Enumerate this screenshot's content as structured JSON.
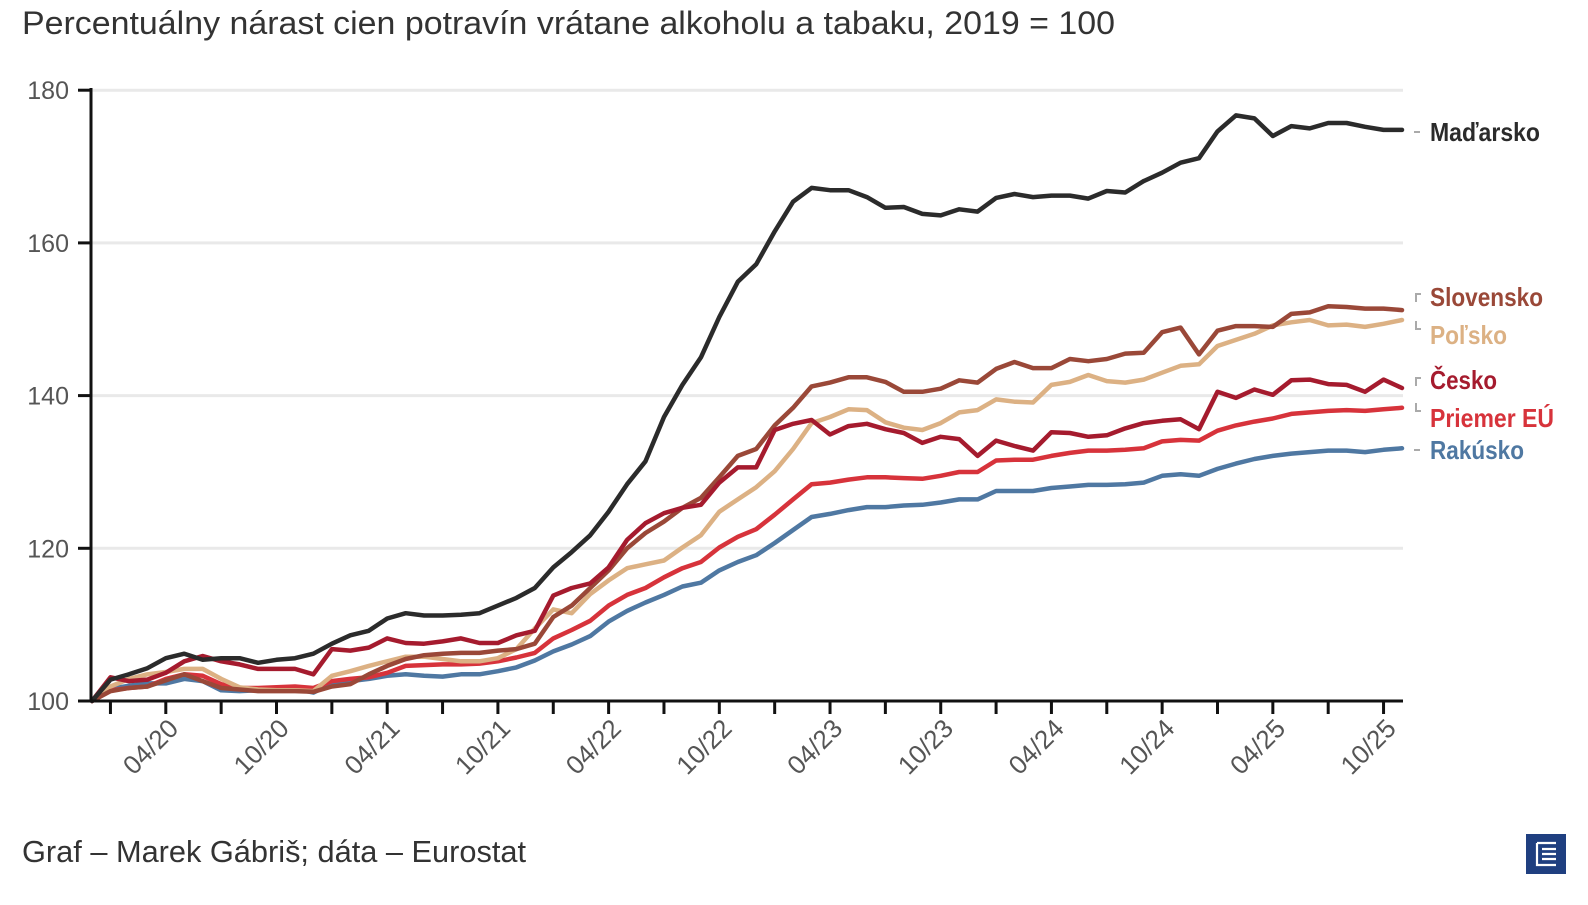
{
  "header": {
    "title": "Percentuálny nárast cien potravín vrátane alkoholu a tabaku, 2019 = 100"
  },
  "footer": {
    "credit": "Graf – Marek Gábriš; dáta – Eurostat"
  },
  "logo": {
    "icon": "e-logo-icon",
    "color": "#1f3f80"
  },
  "chart_data": {
    "type": "line",
    "title": "Percentuálny nárast cien potravín vrátane alkoholu a tabaku, 2019 = 100",
    "xlabel": "",
    "ylabel": "",
    "ylim": [
      100,
      180
    ],
    "y_ticks": [
      "100",
      "120",
      "140",
      "160",
      "180"
    ],
    "y_tick_values": [
      100,
      120,
      140,
      160,
      180
    ],
    "grid": true,
    "legend": "right-end labels",
    "x_unit": "month index (0 = 12/19)",
    "x_count": 72,
    "x_minor_tick_every": 3,
    "x_minor_tick_start": 1,
    "x_ticks": [
      {
        "label": "04/20",
        "month_index": 4
      },
      {
        "label": "10/20",
        "month_index": 10
      },
      {
        "label": "04/21",
        "month_index": 16
      },
      {
        "label": "10/21",
        "month_index": 22
      },
      {
        "label": "04/22",
        "month_index": 28
      },
      {
        "label": "10/22",
        "month_index": 34
      },
      {
        "label": "04/23",
        "month_index": 40
      },
      {
        "label": "10/23",
        "month_index": 46
      },
      {
        "label": "04/24",
        "month_index": 52
      },
      {
        "label": "10/24",
        "month_index": 58
      },
      {
        "label": "04/25",
        "month_index": 64
      },
      {
        "label": "10/25",
        "month_index": 70
      }
    ],
    "series": [
      {
        "name": "Maďarsko",
        "color": "#2b2b2b",
        "values": [
          100,
          102.8,
          103.5,
          104.3,
          105.6,
          106.2,
          105.4,
          105.6,
          105.6,
          105.0,
          105.4,
          105.6,
          106.2,
          107.5,
          108.6,
          109.2,
          110.8,
          111.5,
          111.2,
          111.2,
          111.3,
          111.5,
          112.5,
          113.5,
          114.8,
          117.5,
          119.5,
          121.7,
          124.8,
          128.4,
          131.4,
          137.2,
          141.4,
          145.0,
          150.3,
          154.9,
          157.2,
          161.5,
          165.4,
          167.2,
          166.9,
          166.9,
          166.0,
          164.6,
          164.7,
          163.8,
          163.6,
          164.4,
          164.1,
          165.9,
          166.4,
          166.0,
          166.2,
          166.2,
          165.8,
          166.8,
          166.6,
          168.1,
          169.2,
          170.5,
          171.1,
          174.6,
          176.7,
          176.3,
          174.0,
          175.3,
          175.0,
          175.7,
          175.7,
          175.2,
          174.8,
          174.8
        ]
      },
      {
        "name": "Slovensko",
        "color": "#9a4838",
        "values": [
          100,
          101.3,
          101.7,
          101.9,
          102.7,
          103.5,
          102.6,
          101.7,
          101.5,
          101.3,
          101.3,
          101.3,
          101.2,
          101.9,
          102.2,
          103.5,
          104.6,
          105.5,
          106.0,
          106.2,
          106.3,
          106.3,
          106.6,
          106.8,
          107.5,
          111.0,
          112.5,
          114.8,
          117.1,
          120.0,
          122.0,
          123.5,
          125.3,
          126.6,
          129.3,
          132.1,
          133.0,
          136.1,
          138.4,
          141.2,
          141.7,
          142.4,
          142.4,
          141.8,
          140.5,
          140.5,
          140.9,
          142.0,
          141.7,
          143.5,
          144.4,
          143.6,
          143.6,
          144.8,
          144.5,
          144.8,
          145.5,
          145.6,
          148.3,
          148.9,
          145.4,
          148.5,
          149.1,
          149.1,
          149.0,
          150.7,
          150.9,
          151.7,
          151.6,
          151.4,
          151.4,
          151.2
        ]
      },
      {
        "name": "Poľsko",
        "color": "#dcb184",
        "values": [
          100,
          101.9,
          102.9,
          103.5,
          103.8,
          104.2,
          104.2,
          102.9,
          101.8,
          101.5,
          101.4,
          101.4,
          101.3,
          103.3,
          103.9,
          104.6,
          105.2,
          105.8,
          105.8,
          105.5,
          105.2,
          105.2,
          105.6,
          106.8,
          109.5,
          112.0,
          111.5,
          114.0,
          115.8,
          117.4,
          117.9,
          118.4,
          120.1,
          121.7,
          124.8,
          126.4,
          128.0,
          130.1,
          133.0,
          136.4,
          137.2,
          138.2,
          138.1,
          136.5,
          135.8,
          135.5,
          136.4,
          137.8,
          138.1,
          139.5,
          139.2,
          139.1,
          141.4,
          141.8,
          142.7,
          141.9,
          141.7,
          142.1,
          143.0,
          143.9,
          144.1,
          146.5,
          147.3,
          148.1,
          149.2,
          149.6,
          149.9,
          149.2,
          149.3,
          149.0,
          149.4,
          149.9
        ]
      },
      {
        "name": "Česko",
        "color": "#a51b2e",
        "values": [
          100,
          103.1,
          102.6,
          102.8,
          103.7,
          105.2,
          105.9,
          105.2,
          104.8,
          104.2,
          104.2,
          104.2,
          103.5,
          106.8,
          106.6,
          107.0,
          108.2,
          107.6,
          107.5,
          107.8,
          108.2,
          107.6,
          107.6,
          108.6,
          109.2,
          113.8,
          114.8,
          115.4,
          117.5,
          121.1,
          123.3,
          124.6,
          125.3,
          125.7,
          128.6,
          130.6,
          130.6,
          135.5,
          136.3,
          136.8,
          134.9,
          136.0,
          136.3,
          135.6,
          135.1,
          133.8,
          134.6,
          134.3,
          132.1,
          134.1,
          133.4,
          132.8,
          135.2,
          135.1,
          134.6,
          134.8,
          135.7,
          136.4,
          136.7,
          136.9,
          135.6,
          140.5,
          139.7,
          140.8,
          140.1,
          142.0,
          142.1,
          141.5,
          141.4,
          140.5,
          142.1,
          141.0
        ]
      },
      {
        "name": "Priemer EÚ",
        "color": "#d7333b",
        "values": [
          100,
          101.4,
          101.7,
          101.9,
          102.9,
          103.5,
          103.3,
          102.2,
          101.7,
          101.7,
          101.8,
          101.9,
          101.7,
          102.6,
          102.9,
          103.1,
          103.7,
          104.6,
          104.7,
          104.8,
          104.8,
          104.9,
          105.2,
          105.7,
          106.3,
          108.2,
          109.3,
          110.5,
          112.5,
          113.9,
          114.8,
          116.2,
          117.4,
          118.2,
          120.1,
          121.5,
          122.5,
          124.4,
          126.4,
          128.4,
          128.6,
          129.0,
          129.3,
          129.3,
          129.2,
          129.1,
          129.5,
          130.0,
          130.0,
          131.5,
          131.6,
          131.6,
          132.1,
          132.5,
          132.8,
          132.8,
          132.9,
          133.1,
          134.0,
          134.2,
          134.1,
          135.4,
          136.1,
          136.6,
          137.0,
          137.6,
          137.8,
          138.0,
          138.1,
          138.0,
          138.2,
          138.4
        ]
      },
      {
        "name": "Rakúsko",
        "color": "#4f78a2",
        "values": [
          100,
          101.6,
          102.0,
          102.3,
          102.3,
          102.9,
          102.6,
          101.4,
          101.3,
          101.4,
          101.5,
          101.6,
          101.1,
          102.3,
          102.6,
          102.9,
          103.3,
          103.5,
          103.3,
          103.2,
          103.5,
          103.5,
          103.9,
          104.4,
          105.3,
          106.5,
          107.4,
          108.5,
          110.4,
          111.8,
          112.9,
          113.9,
          115.0,
          115.5,
          117.1,
          118.2,
          119.1,
          120.7,
          122.4,
          124.1,
          124.5,
          125.0,
          125.4,
          125.4,
          125.6,
          125.7,
          126.0,
          126.4,
          126.4,
          127.5,
          127.5,
          127.5,
          127.9,
          128.1,
          128.3,
          128.3,
          128.4,
          128.6,
          129.5,
          129.7,
          129.5,
          130.4,
          131.1,
          131.7,
          132.1,
          132.4,
          132.6,
          132.8,
          132.8,
          132.6,
          132.9,
          133.1
        ]
      }
    ]
  }
}
